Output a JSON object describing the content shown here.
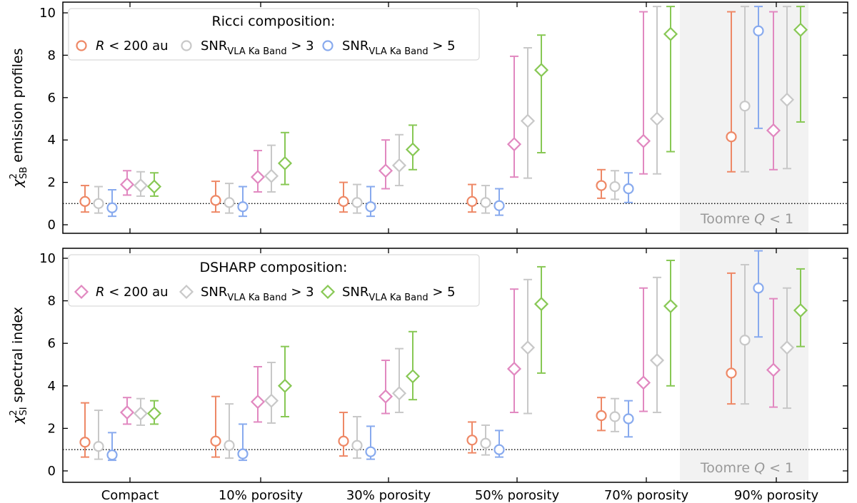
{
  "chart_data": [
    {
      "type": "errorbar",
      "panel": "top",
      "ylabel": "χ²_SB emission profiles",
      "ylabel_main": "χ",
      "ylabel_sup": "2",
      "ylabel_sub": "SB",
      "ylabel_rest": " emission profiles",
      "ylim": [
        -0.5,
        10.3
      ],
      "yticks": [
        "0",
        "2",
        "4",
        "6",
        "8",
        "10"
      ],
      "reference_line": 1,
      "categories": [
        "Compact",
        "10% porosity",
        "30% porosity",
        "50% porosity",
        "70% porosity",
        "90% porosity"
      ],
      "shaded_region": {
        "from_category": 4,
        "to_category": 5,
        "label_main": "Toomre ",
        "label_italic": "Q",
        "label_rest": " < 1"
      },
      "legend": {
        "title": "Ricci composition:",
        "entries": [
          {
            "label_italic": "R",
            "label_rest": " < 200 au",
            "marker": "circle",
            "color": "#ee8866"
          },
          {
            "label_main": "SNR",
            "label_sub": "VLA Ka Band",
            "label_rest": " > 3",
            "marker": "circle",
            "color": "#c8c8c8"
          },
          {
            "label_main": "SNR",
            "label_sub": "VLA Ka Band",
            "label_rest": " > 5",
            "marker": "circle",
            "color": "#88aaee"
          }
        ]
      },
      "series": [
        {
          "name": "Ricci R<200au",
          "composition": "Ricci",
          "cut": "R<200au",
          "marker": "circle",
          "color": "#ee8866",
          "points": [
            {
              "cat": 0,
              "y": 1.1,
              "lo": 0.6,
              "hi": 1.85
            },
            {
              "cat": 1,
              "y": 1.15,
              "lo": 0.6,
              "hi": 2.05
            },
            {
              "cat": 2,
              "y": 1.1,
              "lo": 0.6,
              "hi": 2.0
            },
            {
              "cat": 3,
              "y": 1.1,
              "lo": 0.6,
              "hi": 1.9
            },
            {
              "cat": 4,
              "y": 1.85,
              "lo": 1.25,
              "hi": 2.6
            },
            {
              "cat": 5,
              "y": 4.15,
              "lo": 2.5,
              "hi": 10.05
            }
          ]
        },
        {
          "name": "Ricci SNR>3",
          "composition": "Ricci",
          "cut": "SNR>3",
          "marker": "circle",
          "color": "#c8c8c8",
          "points": [
            {
              "cat": 0,
              "y": 1.0,
              "lo": 0.55,
              "hi": 1.8
            },
            {
              "cat": 1,
              "y": 1.05,
              "lo": 0.55,
              "hi": 1.95
            },
            {
              "cat": 2,
              "y": 1.05,
              "lo": 0.55,
              "hi": 1.9
            },
            {
              "cat": 3,
              "y": 1.05,
              "lo": 0.55,
              "hi": 1.85
            },
            {
              "cat": 4,
              "y": 1.8,
              "lo": 1.2,
              "hi": 2.55
            },
            {
              "cat": 5,
              "y": 5.6,
              "lo": 2.5,
              "hi": 10.3
            }
          ]
        },
        {
          "name": "Ricci SNR>5",
          "composition": "Ricci",
          "cut": "SNR>5",
          "marker": "circle",
          "color": "#88aaee",
          "points": [
            {
              "cat": 0,
              "y": 0.8,
              "lo": 0.4,
              "hi": 1.65
            },
            {
              "cat": 1,
              "y": 0.85,
              "lo": 0.4,
              "hi": 1.8
            },
            {
              "cat": 2,
              "y": 0.85,
              "lo": 0.4,
              "hi": 1.8
            },
            {
              "cat": 3,
              "y": 0.9,
              "lo": 0.45,
              "hi": 1.7
            },
            {
              "cat": 4,
              "y": 1.7,
              "lo": 1.05,
              "hi": 2.45
            },
            {
              "cat": 5,
              "y": 9.15,
              "lo": 4.55,
              "hi": 10.3
            }
          ]
        },
        {
          "name": "DSHARP R<200au",
          "composition": "DSHARP",
          "cut": "R<200au",
          "marker": "diamond",
          "color": "#e188c0",
          "points": [
            {
              "cat": 0,
              "y": 1.9,
              "lo": 1.4,
              "hi": 2.55
            },
            {
              "cat": 1,
              "y": 2.25,
              "lo": 1.55,
              "hi": 3.5
            },
            {
              "cat": 2,
              "y": 2.55,
              "lo": 1.7,
              "hi": 4.0
            },
            {
              "cat": 3,
              "y": 3.8,
              "lo": 2.25,
              "hi": 7.95
            },
            {
              "cat": 4,
              "y": 3.95,
              "lo": 2.4,
              "hi": 10.05
            },
            {
              "cat": 5,
              "y": 4.45,
              "lo": 2.6,
              "hi": 10.05
            }
          ]
        },
        {
          "name": "DSHARP SNR>3",
          "composition": "DSHARP",
          "cut": "SNR>3",
          "marker": "diamond",
          "color": "#c8c8c8",
          "points": [
            {
              "cat": 0,
              "y": 1.85,
              "lo": 1.35,
              "hi": 2.5
            },
            {
              "cat": 1,
              "y": 2.3,
              "lo": 1.55,
              "hi": 3.75
            },
            {
              "cat": 2,
              "y": 2.8,
              "lo": 1.85,
              "hi": 4.25
            },
            {
              "cat": 3,
              "y": 4.9,
              "lo": 2.2,
              "hi": 8.35
            },
            {
              "cat": 4,
              "y": 5.0,
              "lo": 2.4,
              "hi": 10.3
            },
            {
              "cat": 5,
              "y": 5.9,
              "lo": 2.65,
              "hi": 10.3
            }
          ]
        },
        {
          "name": "DSHARP SNR>5",
          "composition": "DSHARP",
          "cut": "SNR>5",
          "marker": "diamond",
          "color": "#88c855",
          "points": [
            {
              "cat": 0,
              "y": 1.8,
              "lo": 1.35,
              "hi": 2.45
            },
            {
              "cat": 1,
              "y": 2.9,
              "lo": 1.9,
              "hi": 4.35
            },
            {
              "cat": 2,
              "y": 3.55,
              "lo": 2.6,
              "hi": 4.7
            },
            {
              "cat": 3,
              "y": 7.3,
              "lo": 3.4,
              "hi": 8.95
            },
            {
              "cat": 4,
              "y": 9.0,
              "lo": 3.45,
              "hi": 10.3
            },
            {
              "cat": 5,
              "y": 9.2,
              "lo": 4.85,
              "hi": 10.3
            }
          ]
        }
      ]
    },
    {
      "type": "errorbar",
      "panel": "bottom",
      "ylabel": "χ²_SI spectral index",
      "ylabel_main": "χ",
      "ylabel_sup": "2",
      "ylabel_sub": "SI",
      "ylabel_rest": " spectral index",
      "ylim": [
        -0.5,
        10.5
      ],
      "yticks": [
        "0",
        "2",
        "4",
        "6",
        "8",
        "10"
      ],
      "reference_line": 1,
      "categories": [
        "Compact",
        "10% porosity",
        "30% porosity",
        "50% porosity",
        "70% porosity",
        "90% porosity"
      ],
      "shaded_region": {
        "from_category": 4,
        "to_category": 5,
        "label_main": "Toomre ",
        "label_italic": "Q",
        "label_rest": " < 1"
      },
      "legend": {
        "title": "DSHARP composition:",
        "entries": [
          {
            "label_italic": "R",
            "label_rest": " < 200 au",
            "marker": "diamond",
            "color": "#e188c0"
          },
          {
            "label_main": "SNR",
            "label_sub": "VLA Ka Band",
            "label_rest": " > 3",
            "marker": "diamond",
            "color": "#c8c8c8"
          },
          {
            "label_main": "SNR",
            "label_sub": "VLA Ka Band",
            "label_rest": " > 5",
            "marker": "diamond",
            "color": "#88c855"
          }
        ]
      },
      "series": [
        {
          "name": "Ricci R<200au",
          "composition": "Ricci",
          "cut": "R<200au",
          "marker": "circle",
          "color": "#ee8866",
          "points": [
            {
              "cat": 0,
              "y": 1.35,
              "lo": 0.65,
              "hi": 3.2
            },
            {
              "cat": 1,
              "y": 1.4,
              "lo": 0.65,
              "hi": 3.5
            },
            {
              "cat": 2,
              "y": 1.4,
              "lo": 0.7,
              "hi": 2.75
            },
            {
              "cat": 3,
              "y": 1.45,
              "lo": 0.85,
              "hi": 2.3
            },
            {
              "cat": 4,
              "y": 2.6,
              "lo": 1.9,
              "hi": 3.45
            },
            {
              "cat": 5,
              "y": 4.6,
              "lo": 3.15,
              "hi": 9.3
            }
          ]
        },
        {
          "name": "Ricci SNR>3",
          "composition": "Ricci",
          "cut": "SNR>3",
          "marker": "circle",
          "color": "#c8c8c8",
          "points": [
            {
              "cat": 0,
              "y": 1.15,
              "lo": 0.55,
              "hi": 2.85
            },
            {
              "cat": 1,
              "y": 1.2,
              "lo": 0.6,
              "hi": 3.15
            },
            {
              "cat": 2,
              "y": 1.2,
              "lo": 0.6,
              "hi": 2.55
            },
            {
              "cat": 3,
              "y": 1.3,
              "lo": 0.75,
              "hi": 2.15
            },
            {
              "cat": 4,
              "y": 2.55,
              "lo": 1.85,
              "hi": 3.4
            },
            {
              "cat": 5,
              "y": 6.15,
              "lo": 3.15,
              "hi": 9.7
            }
          ]
        },
        {
          "name": "Ricci SNR>5",
          "composition": "Ricci",
          "cut": "SNR>5",
          "marker": "circle",
          "color": "#88aaee",
          "points": [
            {
              "cat": 0,
              "y": 0.75,
              "lo": 0.5,
              "hi": 1.8
            },
            {
              "cat": 1,
              "y": 0.8,
              "lo": 0.5,
              "hi": 2.2
            },
            {
              "cat": 2,
              "y": 0.9,
              "lo": 0.55,
              "hi": 2.1
            },
            {
              "cat": 3,
              "y": 1.0,
              "lo": 0.65,
              "hi": 1.9
            },
            {
              "cat": 4,
              "y": 2.45,
              "lo": 1.6,
              "hi": 3.3
            },
            {
              "cat": 5,
              "y": 8.6,
              "lo": 6.3,
              "hi": 10.35
            }
          ]
        },
        {
          "name": "DSHARP R<200au",
          "composition": "DSHARP",
          "cut": "R<200au",
          "marker": "diamond",
          "color": "#e188c0",
          "points": [
            {
              "cat": 0,
              "y": 2.75,
              "lo": 2.2,
              "hi": 3.45
            },
            {
              "cat": 1,
              "y": 3.25,
              "lo": 2.3,
              "hi": 4.9
            },
            {
              "cat": 2,
              "y": 3.5,
              "lo": 2.7,
              "hi": 5.2
            },
            {
              "cat": 3,
              "y": 4.8,
              "lo": 2.75,
              "hi": 8.55
            },
            {
              "cat": 4,
              "y": 4.15,
              "lo": 2.8,
              "hi": 8.6
            },
            {
              "cat": 5,
              "y": 4.75,
              "lo": 3.0,
              "hi": 8.1
            }
          ]
        },
        {
          "name": "DSHARP SNR>3",
          "composition": "DSHARP",
          "cut": "SNR>3",
          "marker": "diamond",
          "color": "#c8c8c8",
          "points": [
            {
              "cat": 0,
              "y": 2.7,
              "lo": 2.15,
              "hi": 3.4
            },
            {
              "cat": 1,
              "y": 3.3,
              "lo": 2.25,
              "hi": 5.1
            },
            {
              "cat": 2,
              "y": 3.65,
              "lo": 2.75,
              "hi": 5.75
            },
            {
              "cat": 3,
              "y": 5.8,
              "lo": 2.7,
              "hi": 9.0
            },
            {
              "cat": 4,
              "y": 5.2,
              "lo": 2.75,
              "hi": 9.1
            },
            {
              "cat": 5,
              "y": 5.8,
              "lo": 2.95,
              "hi": 8.6
            }
          ]
        },
        {
          "name": "DSHARP SNR>5",
          "composition": "DSHARP",
          "cut": "SNR>5",
          "marker": "diamond",
          "color": "#88c855",
          "points": [
            {
              "cat": 0,
              "y": 2.7,
              "lo": 2.2,
              "hi": 3.3
            },
            {
              "cat": 1,
              "y": 4.0,
              "lo": 2.55,
              "hi": 5.85
            },
            {
              "cat": 2,
              "y": 4.45,
              "lo": 3.35,
              "hi": 6.55
            },
            {
              "cat": 3,
              "y": 7.85,
              "lo": 4.6,
              "hi": 9.6
            },
            {
              "cat": 4,
              "y": 7.75,
              "lo": 4.0,
              "hi": 9.9
            },
            {
              "cat": 5,
              "y": 7.55,
              "lo": 5.85,
              "hi": 9.5
            }
          ]
        }
      ]
    }
  ]
}
